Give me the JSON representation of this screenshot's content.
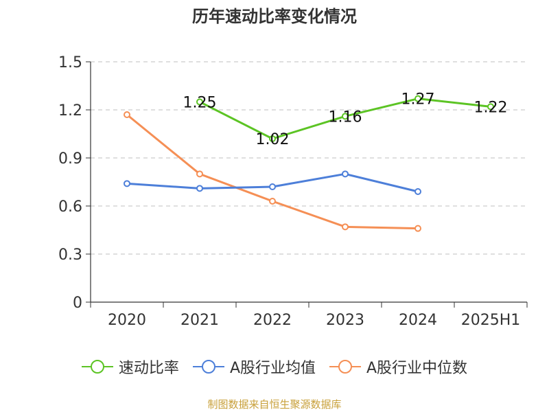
{
  "chart_data": {
    "type": "line",
    "title": "历年速动比率变化情况",
    "categories": [
      "2020",
      "2021",
      "2022",
      "2023",
      "2024",
      "2025H1"
    ],
    "ylim": [
      0,
      1.5
    ],
    "yticks": [
      "0",
      "0.3",
      "0.6",
      "0.9",
      "1.2",
      "1.5"
    ],
    "grid": true,
    "legend_position": "bottom",
    "series": [
      {
        "name": "速动比率",
        "color": "#5cc424",
        "values": [
          null,
          1.25,
          1.02,
          1.16,
          1.27,
          1.22
        ],
        "labels": [
          "",
          "1.25",
          "1.02",
          "1.16",
          "1.27",
          "1.22"
        ]
      },
      {
        "name": "A股行业均值",
        "color": "#4d7fd9",
        "values": [
          0.74,
          0.71,
          0.72,
          0.8,
          0.69,
          null
        ]
      },
      {
        "name": "A股行业中位数",
        "color": "#f58f55",
        "values": [
          1.17,
          0.8,
          0.63,
          0.47,
          0.46,
          null
        ]
      }
    ]
  },
  "footer": {
    "source": "制图数据来自恒生聚源数据库",
    "color": "#c8a03a"
  }
}
